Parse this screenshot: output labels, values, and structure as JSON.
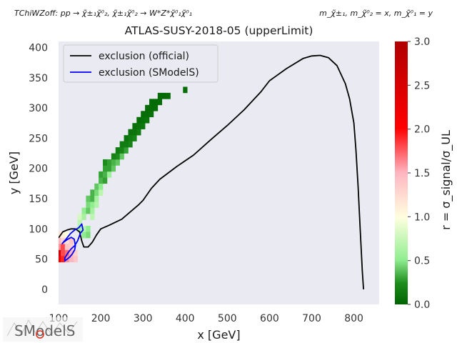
{
  "header": {
    "left_text": "TChiWZoff: pp → χ̃±₁χ̃⁰₂, χ̃±₁χ̃⁰₂ → W*Z*χ̃⁰₁χ̃⁰₁",
    "right_text": "m_χ̃±₁, m_χ̃⁰₂ = x, m_χ̃⁰₁ = y"
  },
  "logo": {
    "text": "SModelS"
  },
  "chart_data": {
    "type": "heatmap",
    "title": "ATLAS-SUSY-2018-05 (upperLimit)",
    "xlabel": "x [GeV]",
    "ylabel": "y [GeV]",
    "xlim": [
      100,
      860
    ],
    "ylim": [
      -25,
      410
    ],
    "xticks": [
      100,
      200,
      300,
      400,
      500,
      600,
      700,
      800
    ],
    "yticks": [
      0,
      50,
      100,
      150,
      200,
      250,
      300,
      350,
      400
    ],
    "grid": false,
    "legend_position": "top-left",
    "legend": [
      {
        "label": "exclusion (official)",
        "color": "#000000"
      },
      {
        "label": "exclusion (SModelS)",
        "color": "#0000ff"
      }
    ],
    "colorbar": {
      "label": "r = σ_signal/σ_UL",
      "min": 0.0,
      "max": 3.0,
      "ticks": [
        "0.0",
        "0.5",
        "1.0",
        "1.5",
        "2.0",
        "2.5",
        "3.0"
      ]
    },
    "cell_size": [
      10,
      10
    ],
    "cells": [
      [
        100,
        90,
        1.2
      ],
      [
        110,
        90,
        1.1
      ],
      [
        120,
        90,
        1.0
      ],
      [
        100,
        80,
        1.5
      ],
      [
        110,
        80,
        1.3
      ],
      [
        120,
        80,
        1.2
      ],
      [
        130,
        80,
        1.4
      ],
      [
        100,
        70,
        1.6
      ],
      [
        110,
        70,
        1.8
      ],
      [
        120,
        70,
        1.4
      ],
      [
        130,
        70,
        1.3
      ],
      [
        100,
        60,
        2.6
      ],
      [
        110,
        60,
        1.8
      ],
      [
        120,
        60,
        1.7
      ],
      [
        130,
        60,
        1.5
      ],
      [
        140,
        60,
        1.3
      ],
      [
        100,
        50,
        2.2
      ],
      [
        110,
        50,
        1.9
      ],
      [
        120,
        50,
        1.6
      ],
      [
        130,
        50,
        1.5
      ],
      [
        140,
        50,
        1.4
      ],
      [
        150,
        120,
        0.8
      ],
      [
        150,
        110,
        0.7
      ],
      [
        160,
        100,
        0.7
      ],
      [
        170,
        100,
        0.5
      ],
      [
        160,
        120,
        0.6
      ],
      [
        180,
        120,
        0.7
      ],
      [
        150,
        100,
        0.6
      ],
      [
        160,
        90,
        0.5
      ],
      [
        170,
        90,
        0.45
      ],
      [
        160,
        130,
        0.5
      ],
      [
        170,
        130,
        0.4
      ],
      [
        180,
        130,
        0.6
      ],
      [
        170,
        140,
        0.45
      ],
      [
        180,
        140,
        0.5
      ],
      [
        190,
        140,
        0.65
      ],
      [
        170,
        150,
        0.4
      ],
      [
        180,
        150,
        0.35
      ],
      [
        190,
        150,
        0.6
      ],
      [
        180,
        160,
        0.35
      ],
      [
        190,
        160,
        0.45
      ],
      [
        200,
        160,
        0.7
      ],
      [
        190,
        170,
        0.4
      ],
      [
        200,
        170,
        0.5
      ],
      [
        200,
        180,
        0.35
      ],
      [
        210,
        180,
        0.3
      ],
      [
        200,
        190,
        0.3
      ],
      [
        210,
        190,
        0.35
      ],
      [
        220,
        190,
        0.55
      ],
      [
        210,
        200,
        0.3
      ],
      [
        220,
        200,
        0.3
      ],
      [
        230,
        200,
        0.4
      ],
      [
        210,
        210,
        0.25
      ],
      [
        220,
        210,
        0.3
      ],
      [
        230,
        210,
        0.35
      ],
      [
        240,
        210,
        0.4
      ],
      [
        230,
        220,
        0.2
      ],
      [
        240,
        220,
        0.25
      ],
      [
        250,
        220,
        0.4
      ],
      [
        240,
        230,
        0.15
      ],
      [
        250,
        230,
        0.2
      ],
      [
        260,
        230,
        0.3
      ],
      [
        250,
        240,
        0.15
      ],
      [
        260,
        240,
        0.15
      ],
      [
        270,
        240,
        0.2
      ],
      [
        260,
        250,
        0.1
      ],
      [
        270,
        250,
        0.15
      ],
      [
        280,
        250,
        0.2
      ],
      [
        270,
        260,
        0.1
      ],
      [
        280,
        260,
        0.1
      ],
      [
        290,
        260,
        0.15
      ],
      [
        280,
        270,
        0.08
      ],
      [
        290,
        270,
        0.1
      ],
      [
        300,
        270,
        0.12
      ],
      [
        290,
        280,
        0.06
      ],
      [
        300,
        280,
        0.08
      ],
      [
        310,
        280,
        0.1
      ],
      [
        300,
        290,
        0.05
      ],
      [
        310,
        290,
        0.06
      ],
      [
        320,
        290,
        0.08
      ],
      [
        310,
        300,
        0.05
      ],
      [
        320,
        300,
        0.05
      ],
      [
        330,
        300,
        0.06
      ],
      [
        320,
        310,
        0.04
      ],
      [
        330,
        310,
        0.04
      ],
      [
        340,
        310,
        0.05
      ],
      [
        340,
        320,
        0.03
      ],
      [
        350,
        320,
        0.03
      ],
      [
        360,
        320,
        0.04
      ],
      [
        400,
        330,
        0.05
      ]
    ],
    "series": [
      {
        "name": "exclusion (official)",
        "color": "#000000",
        "points": [
          [
            100,
            85
          ],
          [
            110,
            95
          ],
          [
            120,
            98
          ],
          [
            130,
            100
          ],
          [
            140,
            100
          ],
          [
            150,
            95
          ],
          [
            155,
            80
          ],
          [
            160,
            70
          ],
          [
            170,
            70
          ],
          [
            180,
            78
          ],
          [
            190,
            90
          ],
          [
            200,
            100
          ],
          [
            220,
            106
          ],
          [
            250,
            116
          ],
          [
            270,
            128
          ],
          [
            290,
            140
          ],
          [
            300,
            147
          ],
          [
            320,
            167
          ],
          [
            340,
            182
          ],
          [
            380,
            203
          ],
          [
            420,
            222
          ],
          [
            460,
            247
          ],
          [
            500,
            271
          ],
          [
            540,
            297
          ],
          [
            560,
            312
          ],
          [
            580,
            327
          ],
          [
            600,
            345
          ],
          [
            640,
            365
          ],
          [
            680,
            382
          ],
          [
            700,
            386
          ],
          [
            720,
            387
          ],
          [
            740,
            383
          ],
          [
            760,
            370
          ],
          [
            780,
            340
          ],
          [
            790,
            315
          ],
          [
            800,
            275
          ],
          [
            805,
            230
          ],
          [
            810,
            170
          ],
          [
            815,
            100
          ],
          [
            820,
            30
          ],
          [
            823,
            0
          ]
        ]
      },
      {
        "name": "exclusion (SModelS)",
        "color": "#0000ff",
        "points": [
          [
            108,
            75
          ],
          [
            118,
            83
          ],
          [
            128,
            92
          ],
          [
            138,
            98
          ],
          [
            148,
            102
          ],
          [
            155,
            108
          ],
          [
            158,
            98
          ],
          [
            152,
            93
          ],
          [
            145,
            80
          ],
          [
            138,
            72
          ],
          [
            130,
            67
          ],
          [
            122,
            60
          ],
          [
            115,
            52
          ],
          [
            115,
            47
          ],
          [
            126,
            53
          ],
          [
            132,
            58
          ],
          [
            138,
            65
          ],
          [
            140,
            72
          ],
          [
            137,
            83
          ],
          [
            130,
            86
          ],
          [
            120,
            82
          ],
          [
            112,
            78
          ],
          [
            108,
            75
          ]
        ]
      }
    ]
  }
}
